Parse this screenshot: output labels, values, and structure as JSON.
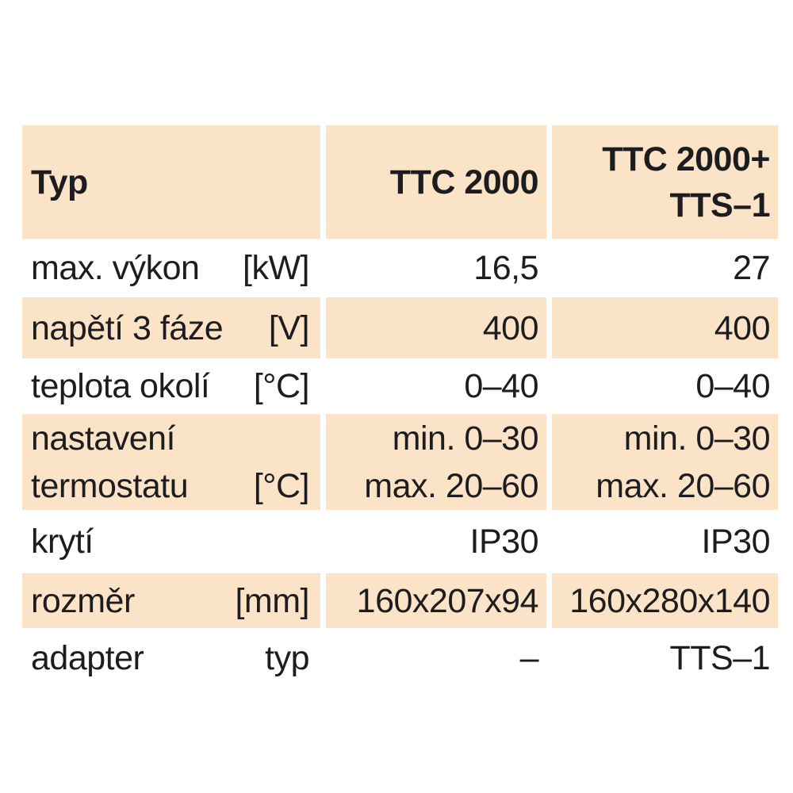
{
  "document": {
    "language": "cs",
    "colors": {
      "row_shade": "#fbe3c8",
      "background": "#ffffff",
      "text": "#1d1d1f"
    },
    "table": {
      "header": {
        "type_label": "Typ",
        "model_1": "TTC 2000",
        "model_2": "TTC 2000+\nTTS–1"
      },
      "rows": [
        {
          "label": "max. výkon",
          "unit": "[kW]",
          "ttc2000": "16,5",
          "ttc2000_plus": "27"
        },
        {
          "label": "napětí 3 fáze",
          "unit": "[V]",
          "ttc2000": "400",
          "ttc2000_plus": "400"
        },
        {
          "label": "teplota okolí",
          "unit": "[°C]",
          "ttc2000": "0–40",
          "ttc2000_plus": "0–40"
        },
        {
          "label": "nastavení\ntermostatu",
          "unit": "[°C]",
          "ttc2000": "min. 0–30\nmax. 20–60",
          "ttc2000_plus": "min. 0–30\nmax. 20–60"
        },
        {
          "label": "krytí",
          "unit": "",
          "ttc2000": "IP30",
          "ttc2000_plus": "IP30"
        },
        {
          "label": "rozměr",
          "unit": "[mm]",
          "ttc2000": "160x207x94",
          "ttc2000_plus": "160x280x140"
        },
        {
          "label": "adapter",
          "unit": "typ",
          "ttc2000": "–",
          "ttc2000_plus": "TTS–1"
        }
      ]
    }
  }
}
